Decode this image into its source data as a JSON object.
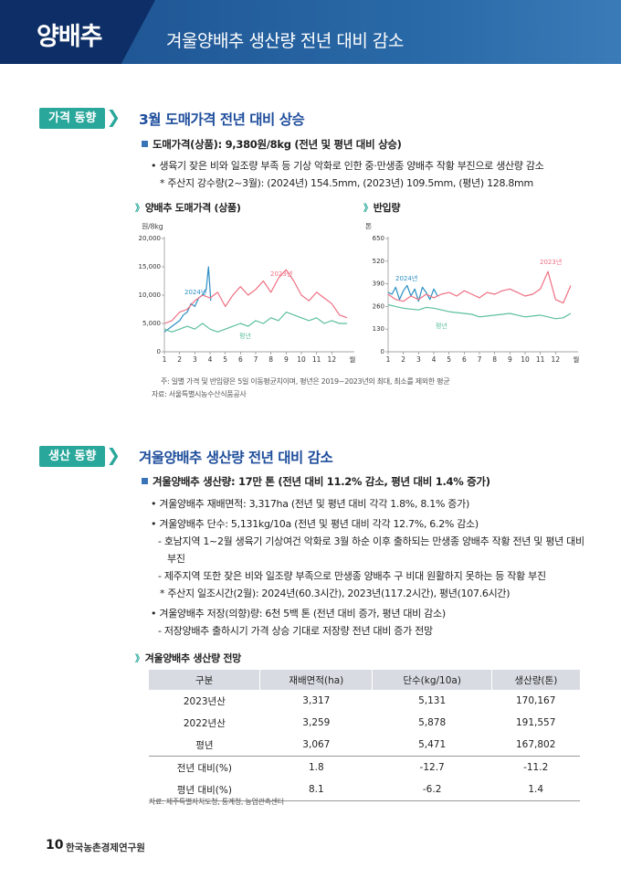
{
  "header": {
    "tag": "양배추",
    "title": "겨울양배추 생산량 전년 대비 감소"
  },
  "section1": {
    "tag": "가격 동향",
    "heading": "3월 도매가격 전년 대비 상승",
    "lead": "도매가격(상품): 9,380원/8kg (전년 및 평년 대비 상승)",
    "items": [
      "• 생육기 잦은 비와 일조량 부족 등 기상 악화로 인한 중·만생종 양배추 작황 부진으로 생산량 감소",
      "* 주산지 강수량(2~3월): (2024년) 154.5mm, (2023년) 109.5mm, (평년) 128.8mm"
    ],
    "note": "주: 일별 가격 및 반입량은 5일 이동평균치이며, 평년은 2019~2023년의 최대, 최소를 제외한 평균",
    "source": "자료: 서울특별시농수산식품공사"
  },
  "chart_data": [
    {
      "type": "line",
      "title": "양배추 도매가격 (상품)",
      "y_unit": "원/8kg",
      "x_unit": "월",
      "xlim": [
        1,
        13
      ],
      "xticks": [
        1,
        2,
        3,
        4,
        5,
        6,
        7,
        8,
        9,
        10,
        11,
        12
      ],
      "ylim": [
        0,
        20000
      ],
      "yticks": [
        0,
        {
          "value": 5000,
          "label": "5,000"
        },
        {
          "value": 10000,
          "label": "10,000"
        },
        {
          "value": 15000,
          "label": "15,000"
        },
        {
          "value": 20000,
          "label": "20,000"
        }
      ],
      "series": [
        {
          "name": "2024년",
          "color": "#2b8fc4",
          "x": [
            1,
            1.25,
            1.5,
            1.75,
            2,
            2.25,
            2.5,
            2.75,
            3,
            3.25,
            3.5,
            3.75,
            3.9,
            4.05
          ],
          "values": [
            3500,
            4000,
            4500,
            5000,
            5500,
            6500,
            7000,
            8500,
            8000,
            9500,
            10000,
            11000,
            15000,
            9000
          ]
        },
        {
          "name": "2023년",
          "color": "#ef6f82",
          "x": [
            1,
            1.5,
            2,
            2.5,
            3,
            3.5,
            4,
            4.5,
            5,
            5.5,
            6,
            6.5,
            7,
            7.5,
            8,
            8.5,
            9,
            9.5,
            10,
            10.5,
            11,
            11.5,
            12,
            12.5,
            13
          ],
          "values": [
            5000,
            5500,
            7000,
            7500,
            9000,
            10000,
            9500,
            10500,
            8000,
            10000,
            11500,
            10000,
            11000,
            12500,
            10500,
            13000,
            14500,
            12500,
            10000,
            9000,
            10500,
            9500,
            8500,
            6500,
            6000
          ]
        },
        {
          "name": "평년",
          "color": "#5cbf9e",
          "x": [
            1,
            1.5,
            2,
            2.5,
            3,
            3.5,
            4,
            4.5,
            5,
            5.5,
            6,
            6.5,
            7,
            7.5,
            8,
            8.5,
            9,
            9.5,
            10,
            10.5,
            11,
            11.5,
            12,
            12.5,
            13
          ],
          "values": [
            4000,
            3500,
            4000,
            4500,
            4000,
            5000,
            4000,
            3500,
            4000,
            4500,
            5000,
            4500,
            5500,
            5000,
            6000,
            5500,
            7000,
            6500,
            6000,
            5500,
            6000,
            5000,
            5500,
            5000,
            5000
          ]
        }
      ]
    },
    {
      "type": "line",
      "title": "반입량",
      "y_unit": "톤",
      "x_unit": "월",
      "xlim": [
        1,
        13
      ],
      "xticks": [
        1,
        2,
        3,
        4,
        5,
        6,
        7,
        8,
        9,
        10,
        11,
        12
      ],
      "ylim": [
        0,
        650
      ],
      "yticks": [
        0,
        130,
        260,
        390,
        520,
        650
      ],
      "series": [
        {
          "name": "2024년",
          "color": "#2b8fc4",
          "x": [
            1,
            1.25,
            1.5,
            1.75,
            2,
            2.25,
            2.5,
            2.75,
            3,
            3.25,
            3.5,
            3.75,
            4,
            4.25
          ],
          "values": [
            340,
            330,
            370,
            300,
            350,
            380,
            320,
            360,
            290,
            370,
            340,
            300,
            360,
            320
          ]
        },
        {
          "name": "2023년",
          "color": "#ef6f82",
          "x": [
            1,
            1.5,
            2,
            2.5,
            3,
            3.5,
            4,
            4.5,
            5,
            5.5,
            6,
            6.5,
            7,
            7.5,
            8,
            8.5,
            9,
            9.5,
            10,
            10.5,
            11,
            11.5,
            12,
            12.5,
            13
          ],
          "values": [
            330,
            300,
            290,
            320,
            300,
            330,
            310,
            330,
            340,
            320,
            350,
            330,
            310,
            340,
            330,
            350,
            360,
            340,
            320,
            330,
            360,
            460,
            300,
            280,
            380
          ]
        },
        {
          "name": "평년",
          "color": "#5cbf9e",
          "x": [
            1,
            1.5,
            2,
            2.5,
            3,
            3.5,
            4,
            4.5,
            5,
            5.5,
            6,
            6.5,
            7,
            7.5,
            8,
            8.5,
            9,
            9.5,
            10,
            10.5,
            11,
            11.5,
            12,
            12.5,
            13
          ],
          "values": [
            270,
            260,
            250,
            245,
            240,
            255,
            250,
            240,
            230,
            225,
            220,
            215,
            200,
            205,
            210,
            215,
            220,
            210,
            200,
            205,
            210,
            200,
            190,
            195,
            220
          ]
        }
      ]
    }
  ],
  "section2": {
    "tag": "생산 동향",
    "heading": "겨울양배추 생산량 전년 대비 감소",
    "lead": "겨울양배추 생산량: 17만 톤 (전년 대비 11.2% 감소, 평년 대비 1.4% 증가)",
    "items": [
      "• 겨울양배추 재배면적: 3,317ha (전년 및 평년 대비 각각 1.8%, 8.1% 증가)",
      "• 겨울양배추 단수: 5,131kg/10a (전년 및 평년 대비 각각 12.7%, 6.2% 감소)",
      "- 호남지역 1~2월 생육기 기상여건 악화로 3월 하순 이후 출하되는 만생종 양배추 작황 전년 및 평년 대비 부진",
      "- 제주지역 또한 잦은 비와 일조량 부족으로 만생종 양배추 구 비대 원활하지 못하는 등 작황 부진",
      "* 주산지 일조시간(2월): 2024년(60.3시간), 2023년(117.2시간), 평년(107.6시간)",
      "• 겨울양배추 저장(의향)량: 6천 5백 톤 (전년 대비 증가, 평년 대비 감소)",
      "- 저장양배추 출하시기 가격 상승 기대로 저장량 전년 대비 증가 전망"
    ]
  },
  "table": {
    "title": "겨울양배추 생산량 전망",
    "columns": [
      "구분",
      "재배면적(ha)",
      "단수(kg/10a)",
      "생산량(톤)"
    ],
    "rows": [
      [
        "2023년산",
        "3,317",
        "5,131",
        "170,167"
      ],
      [
        "2022년산",
        "3,259",
        "5,878",
        "191,557"
      ],
      [
        "평년",
        "3,067",
        "5,471",
        "167,802"
      ],
      [
        "전년 대비(%)",
        "1.8",
        "-12.7",
        "-11.2"
      ],
      [
        "평년 대비(%)",
        "8.1",
        "-6.2",
        "1.4"
      ]
    ],
    "source": "자료: 제주특별자치도청, 통계청, 농업관측센터"
  },
  "footer": {
    "page": "10",
    "org": "한국농촌경제연구원"
  }
}
